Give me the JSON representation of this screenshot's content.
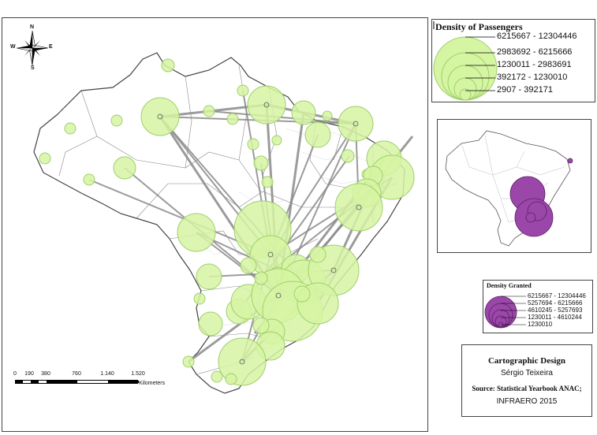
{
  "compass": {
    "north": "N",
    "south": "S",
    "east": "E",
    "west": "W"
  },
  "scale_bar": {
    "ticks": [
      "0",
      "190",
      "380",
      "760",
      "1.140",
      "1.520"
    ],
    "unit": "Kilometers"
  },
  "legend_passengers": {
    "title": "Density of Passengers",
    "classes": [
      "6215667 - 12304446",
      "2983692 - 6215666",
      "1230011 - 2983691",
      "392172 - 1230010",
      "2907 - 392171"
    ],
    "fill_color": "#d6f5a3"
  },
  "legend_granted": {
    "title": "Density Granted",
    "classes": [
      "6215667 - 12304446",
      "5257694 - 6215666",
      "4610245 - 5257693",
      "1230011 - 4610244",
      "1230010"
    ],
    "fill_color": "#9b47a9"
  },
  "credits": {
    "heading": "Cartographic Design",
    "author": "Sérgio Teixeira",
    "source": "Source: Statistical Yearbook ANAC;",
    "source2": "INFRAERO 2015"
  },
  "colors": {
    "circle_fill": "#d6f5a3",
    "circle_stroke": "#9fcf6a",
    "flow_line": "#8a8a8a",
    "state_border": "#888888",
    "granted": "#9b47a9"
  }
}
